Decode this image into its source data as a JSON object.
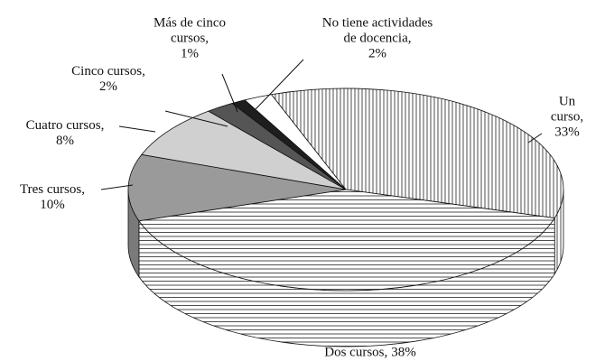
{
  "chart_data": {
    "type": "pie",
    "categories": [
      "Un curso,",
      "Dos cursos,",
      "Tres cursos,",
      "Cuatro cursos,",
      "Cinco cursos,",
      "Más de cinco\ncursos,",
      "No tiene actividades\nde docencia,"
    ],
    "values": [
      33,
      38,
      10,
      8,
      2,
      1,
      2
    ],
    "value_labels": [
      "33%",
      "38%",
      "10%",
      "8%",
      "2%",
      "1%",
      "2%"
    ],
    "colors": [
      "#ffffff",
      "#ffffff",
      "#9a9a9a",
      "#d0d0d0",
      "#555555",
      "#1e1e1e",
      "#ffffff"
    ],
    "side_colors": [
      "#ffffff",
      "#5e5e5e",
      "#7a7a7a",
      "#a8a8a8",
      "#3a3a3a",
      "#111111",
      "#dddddd"
    ],
    "hatch": [
      "vertical",
      "horizontal",
      null,
      null,
      null,
      null,
      null
    ]
  }
}
